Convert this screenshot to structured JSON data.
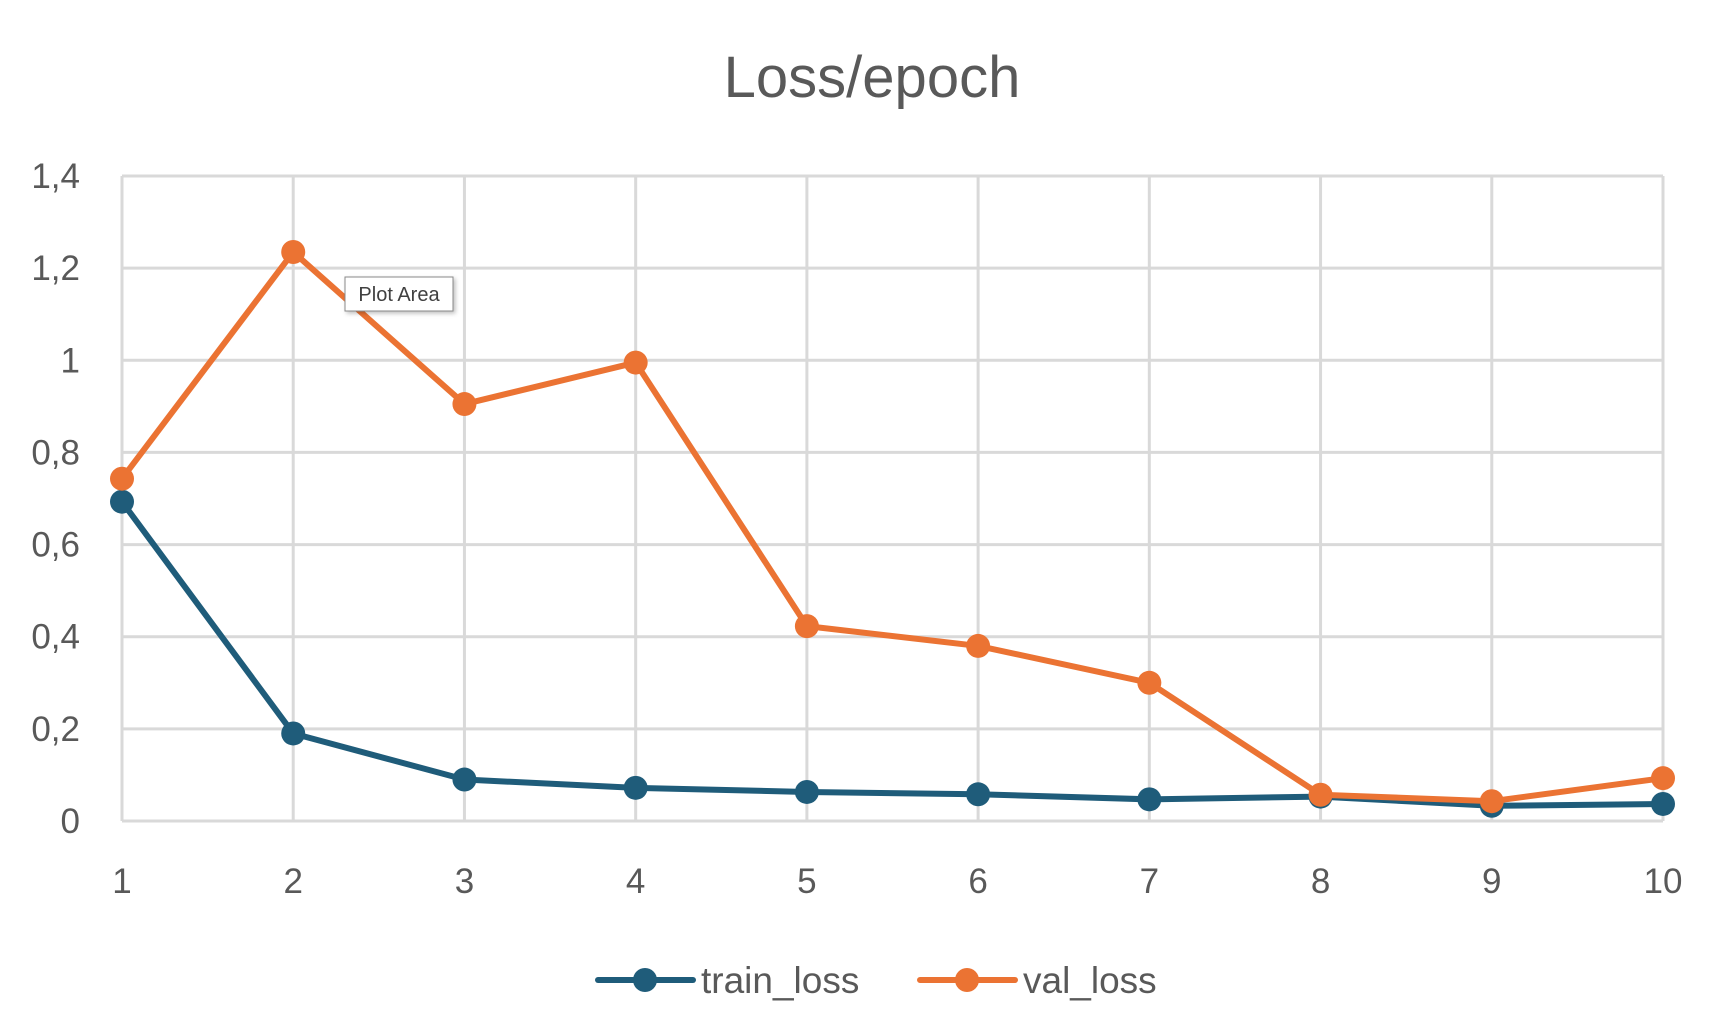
{
  "chart_data": {
    "type": "line",
    "title": "Loss/epoch",
    "xlabel": "",
    "ylabel": "",
    "x": [
      1,
      2,
      3,
      4,
      5,
      6,
      7,
      8,
      9,
      10
    ],
    "x_tick_labels": [
      "1",
      "2",
      "3",
      "4",
      "5",
      "6",
      "7",
      "8",
      "9",
      "10"
    ],
    "ylim": [
      0,
      1.4
    ],
    "y_ticks": [
      0,
      0.2,
      0.4,
      0.6,
      0.8,
      1,
      1.2,
      1.4
    ],
    "y_tick_labels": [
      "0",
      "0,2",
      "0,4",
      "0,6",
      "0,8",
      "1",
      "1,2",
      "1,4"
    ],
    "grid": true,
    "legend_position": "bottom",
    "series": [
      {
        "name": "train_loss",
        "color": "#1f5c7a",
        "values": [
          0.693,
          0.19,
          0.09,
          0.072,
          0.063,
          0.058,
          0.047,
          0.053,
          0.033,
          0.037
        ]
      },
      {
        "name": "val_loss",
        "color": "#eb7333",
        "values": [
          0.743,
          1.235,
          0.905,
          0.995,
          0.423,
          0.38,
          0.3,
          0.057,
          0.043,
          0.093
        ]
      }
    ]
  },
  "tooltip": {
    "text": "Plot Area"
  },
  "colors": {
    "gridline": "#d9d9d9",
    "axis_text": "#595959",
    "background": "#ffffff"
  }
}
